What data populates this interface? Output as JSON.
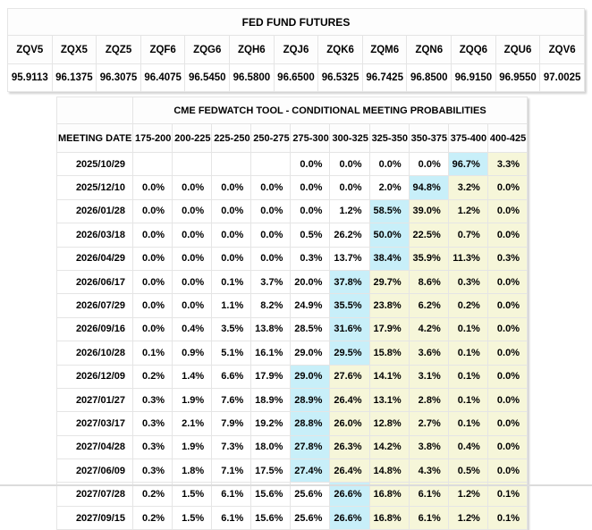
{
  "futures": {
    "title": "FED FUND FUTURES",
    "columns": [
      "ZQV5",
      "ZQX5",
      "ZQZ5",
      "ZQF6",
      "ZQG6",
      "ZQH6",
      "ZQJ6",
      "ZQK6",
      "ZQM6",
      "ZQN6",
      "ZQQ6",
      "ZQU6",
      "ZQV6"
    ],
    "values": [
      "95.9113",
      "96.1375",
      "96.3075",
      "96.4075",
      "96.5450",
      "96.5800",
      "96.6500",
      "96.5325",
      "96.7425",
      "96.8500",
      "96.9150",
      "96.9550",
      "97.0025"
    ]
  },
  "fedwatch": {
    "title": "CME FEDWATCH TOOL - CONDITIONAL MEETING PROBABILITIES",
    "date_header": "MEETING DATE",
    "rate_ranges": [
      "175-200",
      "200-225",
      "225-250",
      "250-275",
      "275-300",
      "300-325",
      "325-350",
      "350-375",
      "375-400",
      "400-425"
    ],
    "rows": [
      {
        "date": "2025/10/29",
        "values": [
          "",
          "",
          "",
          "",
          "0.0%",
          "0.0%",
          "0.0%",
          "0.0%",
          "96.7%",
          "3.3%"
        ],
        "highlights": [
          "n",
          "n",
          "n",
          "n",
          "n",
          "n",
          "n",
          "n",
          "c",
          "y"
        ]
      },
      {
        "date": "2025/12/10",
        "values": [
          "0.0%",
          "0.0%",
          "0.0%",
          "0.0%",
          "0.0%",
          "0.0%",
          "2.0%",
          "94.8%",
          "3.2%",
          "0.0%"
        ],
        "highlights": [
          "n",
          "n",
          "n",
          "n",
          "n",
          "n",
          "n",
          "c",
          "y",
          "y"
        ]
      },
      {
        "date": "2026/01/28",
        "values": [
          "0.0%",
          "0.0%",
          "0.0%",
          "0.0%",
          "0.0%",
          "1.2%",
          "58.5%",
          "39.0%",
          "1.2%",
          "0.0%"
        ],
        "highlights": [
          "n",
          "n",
          "n",
          "n",
          "n",
          "n",
          "c",
          "y",
          "y",
          "y"
        ]
      },
      {
        "date": "2026/03/18",
        "values": [
          "0.0%",
          "0.0%",
          "0.0%",
          "0.0%",
          "0.5%",
          "26.2%",
          "50.0%",
          "22.5%",
          "0.7%",
          "0.0%"
        ],
        "highlights": [
          "n",
          "n",
          "n",
          "n",
          "n",
          "n",
          "c",
          "y",
          "y",
          "y"
        ]
      },
      {
        "date": "2026/04/29",
        "values": [
          "0.0%",
          "0.0%",
          "0.0%",
          "0.0%",
          "0.3%",
          "13.7%",
          "38.4%",
          "35.9%",
          "11.3%",
          "0.3%"
        ],
        "highlights": [
          "n",
          "n",
          "n",
          "n",
          "n",
          "n",
          "c",
          "y",
          "y",
          "y"
        ]
      },
      {
        "date": "2026/06/17",
        "values": [
          "0.0%",
          "0.0%",
          "0.1%",
          "3.7%",
          "20.0%",
          "37.8%",
          "29.7%",
          "8.6%",
          "0.3%",
          "0.0%"
        ],
        "highlights": [
          "n",
          "n",
          "n",
          "n",
          "n",
          "c",
          "y",
          "y",
          "y",
          "y"
        ]
      },
      {
        "date": "2026/07/29",
        "values": [
          "0.0%",
          "0.0%",
          "1.1%",
          "8.2%",
          "24.9%",
          "35.5%",
          "23.8%",
          "6.2%",
          "0.2%",
          "0.0%"
        ],
        "highlights": [
          "n",
          "n",
          "n",
          "n",
          "n",
          "c",
          "y",
          "y",
          "y",
          "y"
        ]
      },
      {
        "date": "2026/09/16",
        "values": [
          "0.0%",
          "0.4%",
          "3.5%",
          "13.8%",
          "28.5%",
          "31.6%",
          "17.9%",
          "4.2%",
          "0.1%",
          "0.0%"
        ],
        "highlights": [
          "n",
          "n",
          "n",
          "n",
          "n",
          "c",
          "y",
          "y",
          "y",
          "y"
        ]
      },
      {
        "date": "2026/10/28",
        "values": [
          "0.1%",
          "0.9%",
          "5.1%",
          "16.1%",
          "29.0%",
          "29.5%",
          "15.8%",
          "3.6%",
          "0.1%",
          "0.0%"
        ],
        "highlights": [
          "n",
          "n",
          "n",
          "n",
          "n",
          "c",
          "y",
          "y",
          "y",
          "y"
        ]
      },
      {
        "date": "2026/12/09",
        "values": [
          "0.2%",
          "1.4%",
          "6.6%",
          "17.9%",
          "29.0%",
          "27.6%",
          "14.1%",
          "3.1%",
          "0.1%",
          "0.0%"
        ],
        "highlights": [
          "n",
          "n",
          "n",
          "n",
          "c",
          "y",
          "y",
          "y",
          "y",
          "y"
        ]
      },
      {
        "date": "2027/01/27",
        "values": [
          "0.3%",
          "1.9%",
          "7.6%",
          "18.9%",
          "28.9%",
          "26.4%",
          "13.1%",
          "2.8%",
          "0.1%",
          "0.0%"
        ],
        "highlights": [
          "n",
          "n",
          "n",
          "n",
          "c",
          "y",
          "y",
          "y",
          "y",
          "y"
        ]
      },
      {
        "date": "2027/03/17",
        "values": [
          "0.3%",
          "2.1%",
          "7.9%",
          "19.2%",
          "28.8%",
          "26.0%",
          "12.8%",
          "2.7%",
          "0.1%",
          "0.0%"
        ],
        "highlights": [
          "n",
          "n",
          "n",
          "n",
          "c",
          "y",
          "y",
          "y",
          "y",
          "y"
        ]
      },
      {
        "date": "2027/04/28",
        "values": [
          "0.3%",
          "1.9%",
          "7.3%",
          "18.0%",
          "27.8%",
          "26.3%",
          "14.2%",
          "3.8%",
          "0.4%",
          "0.0%"
        ],
        "highlights": [
          "n",
          "n",
          "n",
          "n",
          "c",
          "y",
          "y",
          "y",
          "y",
          "y"
        ]
      },
      {
        "date": "2027/06/09",
        "values": [
          "0.3%",
          "1.8%",
          "7.1%",
          "17.5%",
          "27.4%",
          "26.4%",
          "14.8%",
          "4.3%",
          "0.5%",
          "0.0%"
        ],
        "highlights": [
          "n",
          "n",
          "n",
          "n",
          "c",
          "y",
          "y",
          "y",
          "y",
          "y"
        ]
      },
      {
        "date": "2027/07/28",
        "values": [
          "0.2%",
          "1.5%",
          "6.1%",
          "15.6%",
          "25.6%",
          "26.6%",
          "16.8%",
          "6.1%",
          "1.2%",
          "0.1%"
        ],
        "highlights": [
          "n",
          "n",
          "n",
          "n",
          "n",
          "c",
          "y",
          "y",
          "y",
          "y"
        ]
      },
      {
        "date": "2027/09/15",
        "values": [
          "0.2%",
          "1.5%",
          "6.1%",
          "15.6%",
          "25.6%",
          "26.6%",
          "16.8%",
          "6.1%",
          "1.2%",
          "0.1%"
        ],
        "highlights": [
          "n",
          "n",
          "n",
          "n",
          "n",
          "c",
          "y",
          "y",
          "y",
          "y"
        ]
      }
    ]
  },
  "colors": {
    "highlight_blue": "#c8eff9",
    "highlight_yellow": "#f6f6d9",
    "table_border": "#c8c8c8",
    "cell_border": "#e5e5e5"
  }
}
